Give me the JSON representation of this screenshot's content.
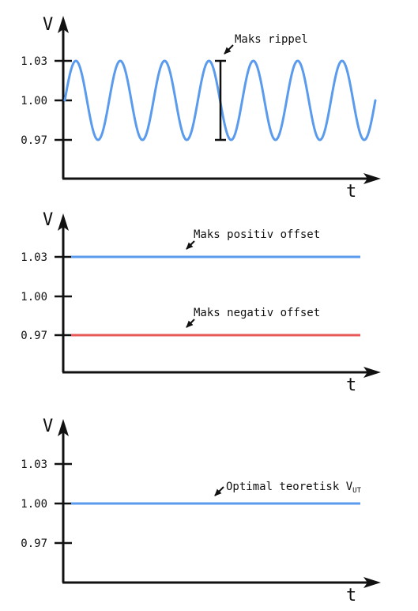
{
  "chart_data": [
    {
      "type": "line",
      "xlabel": "t",
      "ylabel": "V",
      "yticks": [
        "1.03",
        "1.00",
        "0.97"
      ],
      "ylim": [
        0.97,
        1.03
      ],
      "series": [
        {
          "color": "#5b9bed",
          "shape": "sine",
          "center": 1.0,
          "amplitude": 0.03,
          "cycles": 7
        }
      ],
      "annotations": [
        {
          "text": "Maks rippel"
        }
      ]
    },
    {
      "type": "line",
      "xlabel": "t",
      "ylabel": "V",
      "yticks": [
        "1.03",
        "1.00",
        "0.97"
      ],
      "ylim": [
        0.97,
        1.03
      ],
      "series": [
        {
          "color": "#5b9bed",
          "shape": "constant",
          "value": 1.03
        },
        {
          "color": "#e85a5a",
          "shape": "constant",
          "value": 0.97
        }
      ],
      "annotations": [
        {
          "text": "Maks positiv offset"
        },
        {
          "text": "Maks negativ offset"
        }
      ]
    },
    {
      "type": "line",
      "xlabel": "t",
      "ylabel": "V",
      "yticks": [
        "1.03",
        "1.00",
        "0.97"
      ],
      "ylim": [
        0.97,
        1.03
      ],
      "series": [
        {
          "color": "#5b9bed",
          "shape": "constant",
          "value": 1.0
        }
      ],
      "annotations": [
        {
          "text": "Optimal teoretisk V",
          "subscript": "UT"
        }
      ]
    }
  ]
}
